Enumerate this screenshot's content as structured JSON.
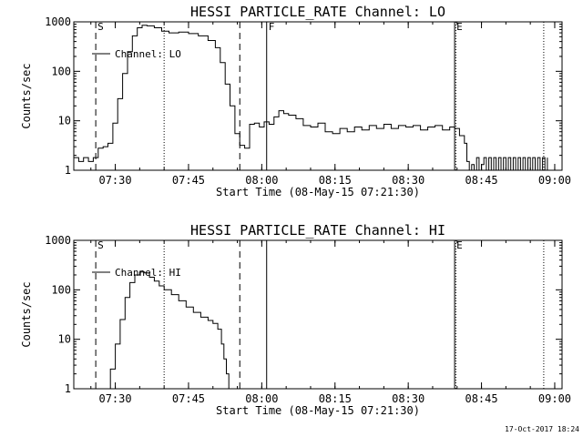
{
  "footer_timestamp": "17-Oct-2017 18:24",
  "chart_data": [
    {
      "type": "line",
      "title": "HESSI PARTICLE_RATE Channel: LO",
      "xlabel": "Start Time (08-May-15 07:21:30)",
      "ylabel": "Counts/sec",
      "y_scale": "log",
      "ylim": [
        1,
        1000
      ],
      "xlim": [
        "07:21:30",
        "09:01:30"
      ],
      "x_ticks": [
        "07:30",
        "07:45",
        "08:00",
        "08:15",
        "08:30",
        "08:45",
        "09:00"
      ],
      "y_ticks": [
        "1",
        "10",
        "100",
        "1000"
      ],
      "legend": "Channel: LO",
      "legend_position": "top-left",
      "markers": [
        {
          "label": "S",
          "time": "07:26:00",
          "style": "dashed"
        },
        {
          "label": "",
          "time": "07:40:00",
          "style": "dotted"
        },
        {
          "label": "",
          "time": "07:55:30",
          "style": "dashed"
        },
        {
          "label": "F",
          "time": "08:01:00",
          "style": "solid"
        },
        {
          "label": "E",
          "time": "08:39:30",
          "style": "solid"
        },
        {
          "label": "",
          "time": "08:39:45",
          "style": "dotted"
        },
        {
          "label": "",
          "time": "08:57:45",
          "style": "dotted"
        }
      ],
      "series": [
        {
          "x": [
            "07:21:30",
            "07:22:30",
            "07:23:30",
            "07:24:30",
            "07:25:30",
            "07:26:30",
            "07:27:30",
            "07:28:30",
            "07:29:30",
            "07:30:30",
            "07:31:30",
            "07:32:30",
            "07:33:30",
            "07:34:30",
            "07:35:30",
            "07:36:30",
            "07:38:00",
            "07:39:30",
            "07:41:00",
            "07:43:00",
            "07:45:00",
            "07:47:00",
            "07:49:00",
            "07:50:30",
            "07:51:30",
            "07:52:30",
            "07:53:30",
            "07:54:30",
            "07:55:30",
            "07:56:30",
            "07:57:30",
            "07:58:30",
            "07:59:30",
            "08:00:30",
            "08:01:30",
            "08:02:30",
            "08:03:30",
            "08:04:30",
            "08:05:30",
            "08:07:00",
            "08:08:30",
            "08:10:00",
            "08:11:30",
            "08:13:00",
            "08:14:30",
            "08:16:00",
            "08:17:30",
            "08:19:00",
            "08:20:30",
            "08:22:00",
            "08:23:30",
            "08:25:00",
            "08:26:30",
            "08:28:00",
            "08:29:30",
            "08:31:00",
            "08:32:30",
            "08:34:00",
            "08:35:30",
            "08:37:00",
            "08:38:30",
            "08:39:30",
            "08:40:30",
            "08:41:30",
            "08:42:00",
            "08:42:30",
            "08:43:00",
            "08:43:30",
            "08:44:00",
            "08:44:30",
            "08:45:00",
            "08:45:30",
            "08:46:00",
            "08:46:30",
            "08:47:00",
            "08:47:30",
            "08:48:00",
            "08:48:30",
            "08:49:00",
            "08:49:30",
            "08:50:00",
            "08:50:30",
            "08:51:00",
            "08:51:30",
            "08:52:00",
            "08:52:30",
            "08:53:00",
            "08:53:30",
            "08:54:00",
            "08:54:30",
            "08:55:00",
            "08:55:30",
            "08:56:00",
            "08:56:30",
            "08:57:00",
            "08:57:30",
            "08:58:00",
            "08:58:30"
          ],
          "values": [
            1.8,
            1.5,
            1.8,
            1.5,
            1.8,
            2.8,
            3.0,
            3.5,
            9,
            28,
            90,
            250,
            520,
            760,
            850,
            830,
            760,
            650,
            600,
            620,
            580,
            520,
            420,
            300,
            150,
            55,
            20,
            5.5,
            3.2,
            2.8,
            8.5,
            9,
            7.5,
            9.5,
            8.5,
            12,
            16,
            14,
            13,
            11,
            8,
            7.5,
            9,
            6,
            5.5,
            7,
            6,
            7.5,
            6.5,
            8,
            7,
            8.5,
            7,
            8,
            7.5,
            8,
            6.5,
            7.5,
            8,
            6.5,
            7.5,
            7,
            5,
            3.5,
            1.5,
            1,
            1.3,
            1,
            1.8,
            1,
            1.3,
            1.8,
            1,
            1.8,
            1,
            1.8,
            1,
            1.8,
            1,
            1.8,
            1,
            1.8,
            1,
            1.8,
            1,
            1.8,
            1,
            1.8,
            1,
            1.8,
            1,
            1.8,
            1,
            1.8,
            1,
            1.8,
            1,
            1.8
          ]
        }
      ]
    },
    {
      "type": "line",
      "title": "HESSI PARTICLE_RATE Channel: HI",
      "xlabel": "Start Time (08-May-15 07:21:30)",
      "ylabel": "Counts/sec",
      "y_scale": "log",
      "ylim": [
        1,
        1000
      ],
      "xlim": [
        "07:21:30",
        "09:01:30"
      ],
      "x_ticks": [
        "07:30",
        "07:45",
        "08:00",
        "08:15",
        "08:30",
        "08:45",
        "09:00"
      ],
      "y_ticks": [
        "1",
        "10",
        "100",
        "1000"
      ],
      "legend": "Channel: HI",
      "legend_position": "top-left",
      "markers": [
        {
          "label": "S",
          "time": "07:26:00",
          "style": "dashed"
        },
        {
          "label": "",
          "time": "07:40:00",
          "style": "dotted"
        },
        {
          "label": "",
          "time": "07:55:30",
          "style": "dashed"
        },
        {
          "label": "",
          "time": "08:01:00",
          "style": "solid"
        },
        {
          "label": "E",
          "time": "08:39:30",
          "style": "solid"
        },
        {
          "label": "",
          "time": "08:39:45",
          "style": "dotted"
        },
        {
          "label": "",
          "time": "08:57:45",
          "style": "dotted"
        }
      ],
      "series": [
        {
          "x": [
            "07:28:00",
            "07:29:00",
            "07:30:00",
            "07:31:00",
            "07:32:00",
            "07:33:00",
            "07:34:00",
            "07:35:00",
            "07:36:00",
            "07:37:00",
            "07:38:00",
            "07:39:00",
            "07:40:00",
            "07:41:30",
            "07:43:00",
            "07:44:30",
            "07:46:00",
            "07:47:30",
            "07:49:00",
            "07:50:00",
            "07:51:00",
            "07:51:45",
            "07:52:15",
            "07:52:45",
            "07:53:15"
          ],
          "values": [
            1,
            2.5,
            8,
            25,
            70,
            140,
            200,
            230,
            220,
            180,
            150,
            120,
            100,
            80,
            60,
            45,
            35,
            28,
            24,
            21,
            16,
            8,
            4,
            2,
            1
          ]
        }
      ]
    }
  ]
}
